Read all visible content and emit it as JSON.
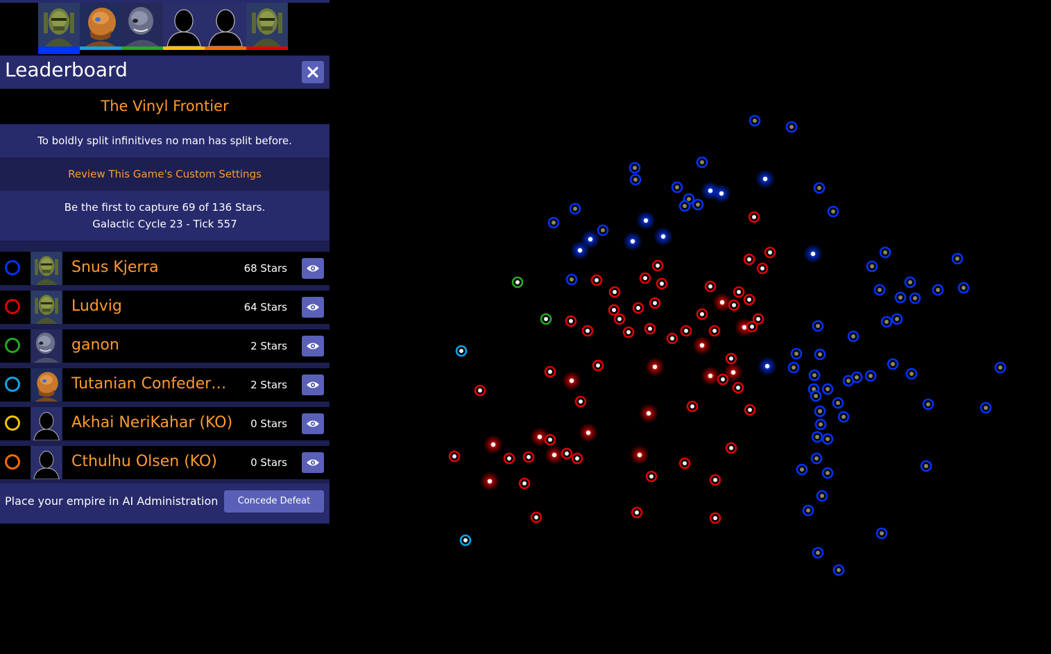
{
  "colors": {
    "panel": "#272a6b",
    "panel_dark": "#1c1f4f",
    "button": "#5a60b8",
    "accent_orange": "#ff9a2e",
    "player_blue": "#0033ff",
    "player_lightblue": "#0ea5e9",
    "player_green": "#22aa22",
    "player_yellow": "#f5c400",
    "player_orange": "#ff6a00",
    "player_red": "#e10000"
  },
  "portrait_strip": [
    {
      "name": "portrait-reptilian",
      "avatar": "reptilian",
      "color": "#0033ff",
      "selected": true
    },
    {
      "name": "portrait-amber-alien",
      "avatar": "amber",
      "color": "#0ea5e9",
      "selected": false
    },
    {
      "name": "portrait-grey-alien",
      "avatar": "grey",
      "color": "#22aa22",
      "selected": false
    },
    {
      "name": "portrait-silhouette-1",
      "avatar": "silhouette",
      "color": "#f5c400",
      "selected": false
    },
    {
      "name": "portrait-silhouette-2",
      "avatar": "silhouette",
      "color": "#ff6a00",
      "selected": false
    },
    {
      "name": "portrait-reptilian-2",
      "avatar": "reptilian",
      "color": "#e10000",
      "selected": false
    }
  ],
  "leaderboard": {
    "title": "Leaderboard",
    "close_icon": "close-icon",
    "game_name": "The Vinyl Frontier",
    "motto": "To boldly split infinitives no man has split before.",
    "review_link": "Review This Game's Custom Settings",
    "goal_line1": "Be the first to capture 69 of 136 Stars.",
    "goal_line2": "Galactic Cycle 23 - Tick 557",
    "players": [
      {
        "name": "Snus Kjerra",
        "stars": "68 Stars",
        "color": "#0033ff",
        "avatar": "reptilian"
      },
      {
        "name": "Ludvig",
        "stars": "64 Stars",
        "color": "#e10000",
        "avatar": "reptilian"
      },
      {
        "name": "ganon",
        "stars": "2 Stars",
        "color": "#22aa22",
        "avatar": "grey"
      },
      {
        "name": "Tutanian Confederat...",
        "stars": "2 Stars",
        "color": "#0ea5e9",
        "avatar": "amber"
      },
      {
        "name": "Akhai NeriKahar (KO)",
        "stars": "0 Stars",
        "color": "#f5c400",
        "avatar": "silhouette"
      },
      {
        "name": "Cthulhu Olsen (KO)",
        "stars": "0 Stars",
        "color": "#ff6a00",
        "avatar": "silhouette"
      }
    ],
    "ai_admin_text": "Place your empire in AI Administration",
    "concede_label": "Concede Defeat"
  }
}
